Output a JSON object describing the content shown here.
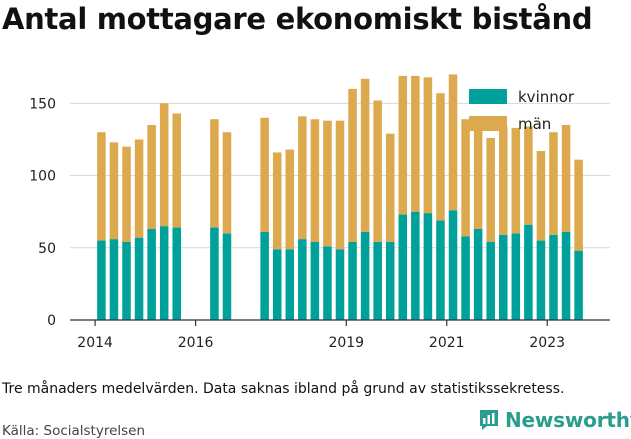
{
  "chart_data": {
    "type": "bar",
    "stacked": true,
    "title": "Antal mottagare ekonomiskt bistånd",
    "note": "Tre månaders medelvärden. Data saknas ibland på grund av statistikssekretess.",
    "source": "Källa: Socialstyrelsen",
    "brand": "Newsworthy",
    "ylim": [
      0,
      180
    ],
    "y_ticks": [
      0,
      50,
      100,
      150
    ],
    "x_ticks": [
      {
        "label": "2014",
        "x": 2014.0
      },
      {
        "label": "2016",
        "x": 2016.0
      },
      {
        "label": "2019",
        "x": 2019.0
      },
      {
        "label": "2021",
        "x": 2021.0
      },
      {
        "label": "2023",
        "x": 2023.0
      }
    ],
    "xlim": [
      2013.5,
      2024.25
    ],
    "grid": "horizontal",
    "legend_position": "top-right",
    "colors": {
      "kvinnor": "#00a19a",
      "man": "#dda94f"
    },
    "series": [
      {
        "name": "kvinnor",
        "values": [
          55,
          56,
          54,
          57,
          63,
          65,
          64,
          64,
          60,
          61,
          49,
          49,
          56,
          54,
          51,
          49,
          54,
          61,
          54,
          54,
          73,
          75,
          74,
          69,
          76,
          58,
          63,
          54,
          59,
          60,
          66,
          55,
          59,
          61,
          48
        ]
      },
      {
        "name": "män",
        "values": [
          75,
          67,
          66,
          68,
          72,
          85,
          79,
          75,
          70,
          79,
          67,
          69,
          85,
          85,
          87,
          89,
          106,
          106,
          98,
          75,
          96,
          94,
          94,
          88,
          94,
          81,
          75,
          72,
          75,
          73,
          68,
          62,
          71,
          74,
          63
        ]
      }
    ],
    "x": [
      2014.125,
      2014.375,
      2014.625,
      2014.875,
      2015.125,
      2015.375,
      2015.625,
      2016.375,
      2016.625,
      2017.375,
      2017.625,
      2017.875,
      2018.125,
      2018.375,
      2018.625,
      2018.875,
      2019.125,
      2019.375,
      2019.625,
      2019.875,
      2020.125,
      2020.375,
      2020.625,
      2020.875,
      2021.125,
      2021.375,
      2021.625,
      2021.875,
      2022.125,
      2022.375,
      2022.625,
      2022.875,
      2023.125,
      2023.375,
      2023.625
    ]
  }
}
